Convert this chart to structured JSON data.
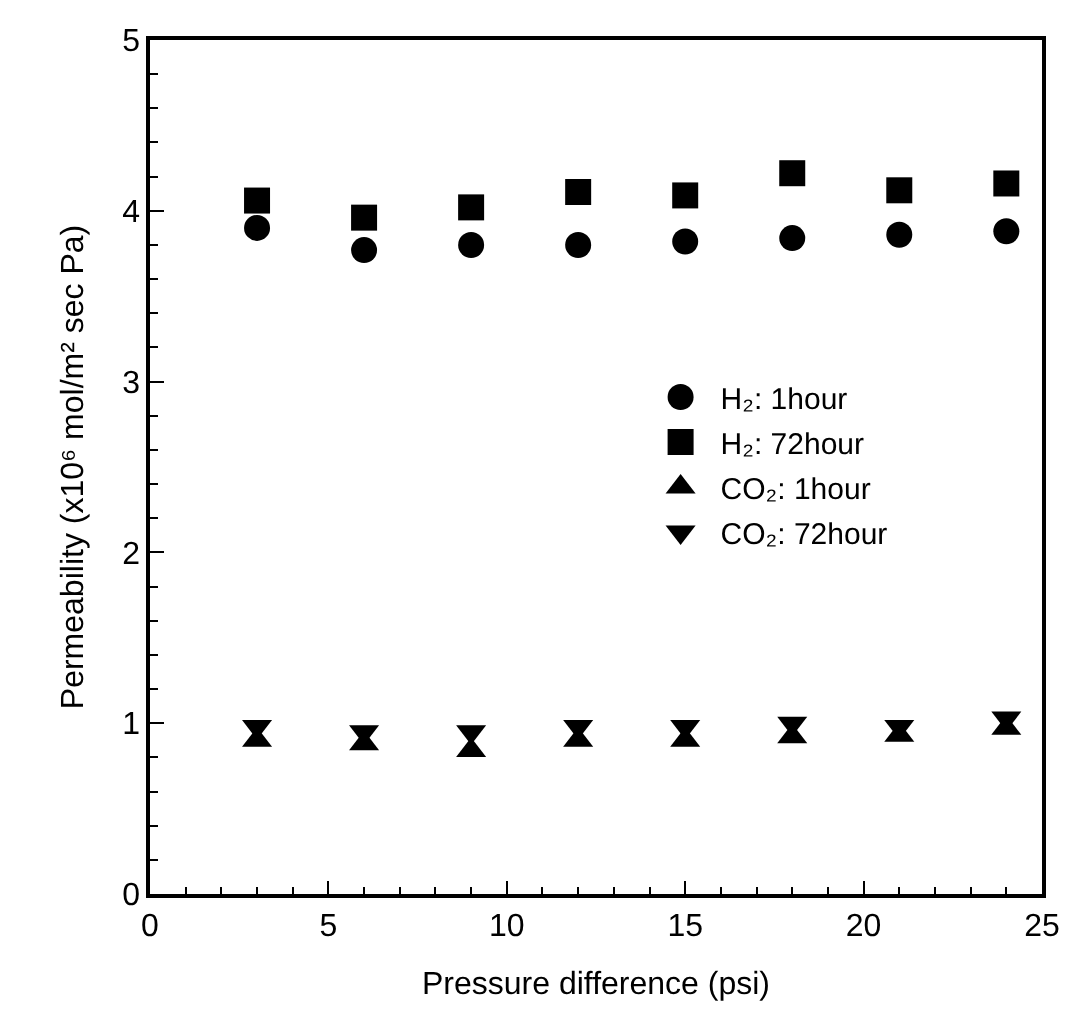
{
  "chart_data": {
    "type": "scatter",
    "xlabel": "Pressure difference (psi)",
    "ylabel": "Permeability (x10⁶ mol/m² sec Pa)",
    "x": [
      3,
      6,
      9,
      12,
      15,
      18,
      21,
      24
    ],
    "series": [
      {
        "name": "H₂: 1hour",
        "color": "#000000",
        "marker": "circle",
        "values": [
          3.9,
          3.77,
          3.8,
          3.8,
          3.82,
          3.84,
          3.86,
          3.88
        ]
      },
      {
        "name": "H₂: 72hour",
        "color": "#000000",
        "marker": "square",
        "values": [
          4.06,
          3.96,
          4.02,
          4.11,
          4.09,
          4.22,
          4.12,
          4.16
        ]
      },
      {
        "name": "CO₂: 1hour",
        "color": "#000000",
        "marker": "triangle",
        "values": [
          0.9,
          0.88,
          0.84,
          0.9,
          0.9,
          0.92,
          0.93,
          0.97
        ]
      },
      {
        "name": "CO₂: 72hour",
        "color": "#000000",
        "marker": "triangle-down",
        "values": [
          0.98,
          0.95,
          0.95,
          0.98,
          0.98,
          1.0,
          0.98,
          1.03
        ]
      }
    ],
    "xlim": [
      0,
      25
    ],
    "xticks": [
      0,
      5,
      10,
      15,
      20,
      25
    ],
    "ylim": [
      0,
      5
    ],
    "yticks": [
      0,
      1,
      2,
      3,
      4,
      5
    ],
    "legend": "right"
  }
}
